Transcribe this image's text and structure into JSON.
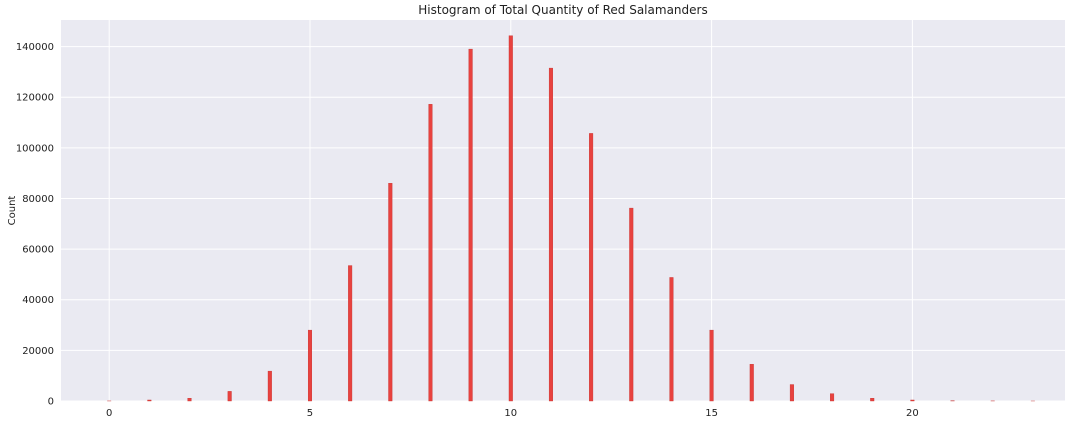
{
  "chart_data": {
    "type": "bar",
    "title": "Histogram of Total Quantity of Red Salamanders",
    "xlabel": "",
    "ylabel": "Count",
    "xlim": [
      -1.2,
      23.8
    ],
    "ylim": [
      0,
      150500
    ],
    "x_ticks": [
      0,
      5,
      10,
      15,
      20
    ],
    "y_ticks": [
      0,
      20000,
      40000,
      60000,
      80000,
      100000,
      120000,
      140000
    ],
    "grid": true,
    "background_color": "#EAEAF2",
    "grid_color": "#FFFFFF",
    "bar_color": "#E8423F",
    "x": [
      0,
      1,
      2,
      3,
      4,
      5,
      6,
      7,
      8,
      9,
      10,
      11,
      12,
      13,
      14,
      15,
      16,
      17,
      18,
      19,
      20,
      21,
      22,
      23
    ],
    "values": [
      30,
      400,
      1100,
      3800,
      11800,
      28000,
      53500,
      86000,
      117200,
      139000,
      144300,
      131500,
      105700,
      76200,
      48800,
      28000,
      14500,
      6500,
      2900,
      1100,
      400,
      120,
      40,
      10
    ]
  }
}
